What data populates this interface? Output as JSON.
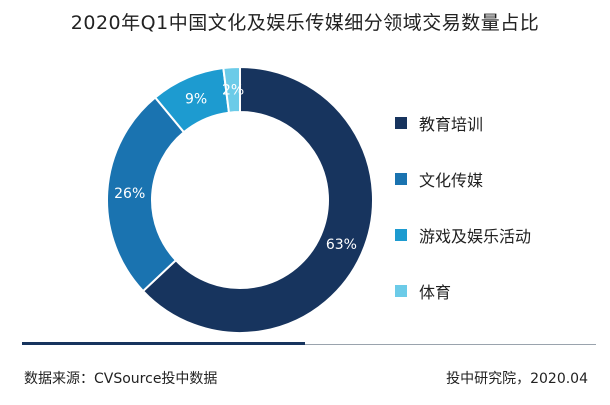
{
  "chart_data": {
    "type": "pie",
    "title": "2020年Q1中国文化及娱乐传媒细分领域交易数量占比",
    "categories": [
      "教育培训",
      "文化传媒",
      "游戏及娱乐活动",
      "体育"
    ],
    "values": [
      63,
      26,
      9,
      2
    ],
    "value_labels": [
      "63%",
      "26%",
      "9%",
      "2%"
    ],
    "colors": [
      "#17345e",
      "#1a73b0",
      "#1d9bd0",
      "#6ccbe8"
    ],
    "legend_position": "right",
    "style": "donut"
  },
  "footer": {
    "source": "数据来源：CVSource投中数据",
    "credit": "投中研究院，2020.04"
  }
}
